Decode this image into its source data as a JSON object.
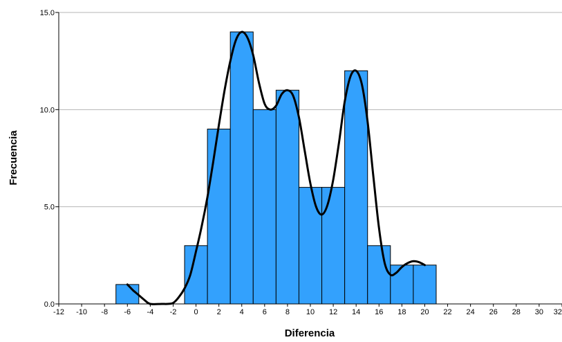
{
  "chart_data": {
    "type": "bar",
    "xlabel": "Diferencia",
    "ylabel": "Frecuencia",
    "xlim": [
      -12,
      32
    ],
    "ylim": [
      0,
      15
    ],
    "grid": "horizontal",
    "x_ticks": [
      -12,
      -10,
      -8,
      -6,
      -4,
      -2,
      0,
      2,
      4,
      6,
      8,
      10,
      12,
      14,
      16,
      18,
      20,
      22,
      24,
      26,
      28,
      30,
      32
    ],
    "x_tick_labels": [
      "-12",
      "-10",
      "-8",
      "-6",
      "-4",
      "-2",
      "0",
      "2",
      "4",
      "6",
      "8",
      "10",
      "12",
      "14",
      "16",
      "18",
      "20",
      "22",
      "24",
      "26",
      "28",
      "30",
      "32"
    ],
    "y_ticks": [
      0,
      5,
      10,
      15
    ],
    "y_tick_labels": [
      "0.0",
      "5.0",
      "10.0",
      "15.0"
    ],
    "bar_color": "#33a1fd",
    "bar_edge_color": "#000000",
    "curve_color": "#000000",
    "bins": [
      {
        "x0": -7,
        "x1": -5,
        "count": 1
      },
      {
        "x0": -1,
        "x1": 1,
        "count": 3
      },
      {
        "x0": 1,
        "x1": 3,
        "count": 9
      },
      {
        "x0": 3,
        "x1": 5,
        "count": 14
      },
      {
        "x0": 5,
        "x1": 7,
        "count": 10
      },
      {
        "x0": 7,
        "x1": 9,
        "count": 11
      },
      {
        "x0": 9,
        "x1": 11,
        "count": 6
      },
      {
        "x0": 11,
        "x1": 13,
        "count": 6
      },
      {
        "x0": 13,
        "x1": 15,
        "count": 12
      },
      {
        "x0": 15,
        "x1": 17,
        "count": 3
      },
      {
        "x0": 17,
        "x1": 19,
        "count": 2
      },
      {
        "x0": 19,
        "x1": 21,
        "count": 2
      }
    ],
    "density_curve": [
      [
        -6.0,
        1.0
      ],
      [
        -5.5,
        0.7
      ],
      [
        -5.0,
        0.45
      ],
      [
        -4.5,
        0.2
      ],
      [
        -4.0,
        0.0
      ],
      [
        -3.0,
        0.0
      ],
      [
        -2.5,
        0.0
      ],
      [
        -2.0,
        0.05
      ],
      [
        -1.5,
        0.35
      ],
      [
        -1.0,
        0.8
      ],
      [
        -0.5,
        1.5
      ],
      [
        0.0,
        2.7
      ],
      [
        0.5,
        4.0
      ],
      [
        1.0,
        5.5
      ],
      [
        1.5,
        7.3
      ],
      [
        2.0,
        9.2
      ],
      [
        2.5,
        11.0
      ],
      [
        3.0,
        12.5
      ],
      [
        3.5,
        13.6
      ],
      [
        4.0,
        14.0
      ],
      [
        4.5,
        13.7
      ],
      [
        5.0,
        12.8
      ],
      [
        5.5,
        11.4
      ],
      [
        6.0,
        10.3
      ],
      [
        6.5,
        10.0
      ],
      [
        7.0,
        10.2
      ],
      [
        7.5,
        10.8
      ],
      [
        8.0,
        11.0
      ],
      [
        8.5,
        10.7
      ],
      [
        9.0,
        9.6
      ],
      [
        9.5,
        7.9
      ],
      [
        10.0,
        6.2
      ],
      [
        10.5,
        5.0
      ],
      [
        11.0,
        4.6
      ],
      [
        11.5,
        5.1
      ],
      [
        12.0,
        6.4
      ],
      [
        12.5,
        8.3
      ],
      [
        13.0,
        10.4
      ],
      [
        13.5,
        11.7
      ],
      [
        14.0,
        12.0
      ],
      [
        14.5,
        11.3
      ],
      [
        15.0,
        9.4
      ],
      [
        15.5,
        6.6
      ],
      [
        16.0,
        3.9
      ],
      [
        16.5,
        2.1
      ],
      [
        17.0,
        1.5
      ],
      [
        17.5,
        1.6
      ],
      [
        18.0,
        1.9
      ],
      [
        18.5,
        2.1
      ],
      [
        19.0,
        2.2
      ],
      [
        19.5,
        2.15
      ],
      [
        20.0,
        2.0
      ]
    ]
  }
}
